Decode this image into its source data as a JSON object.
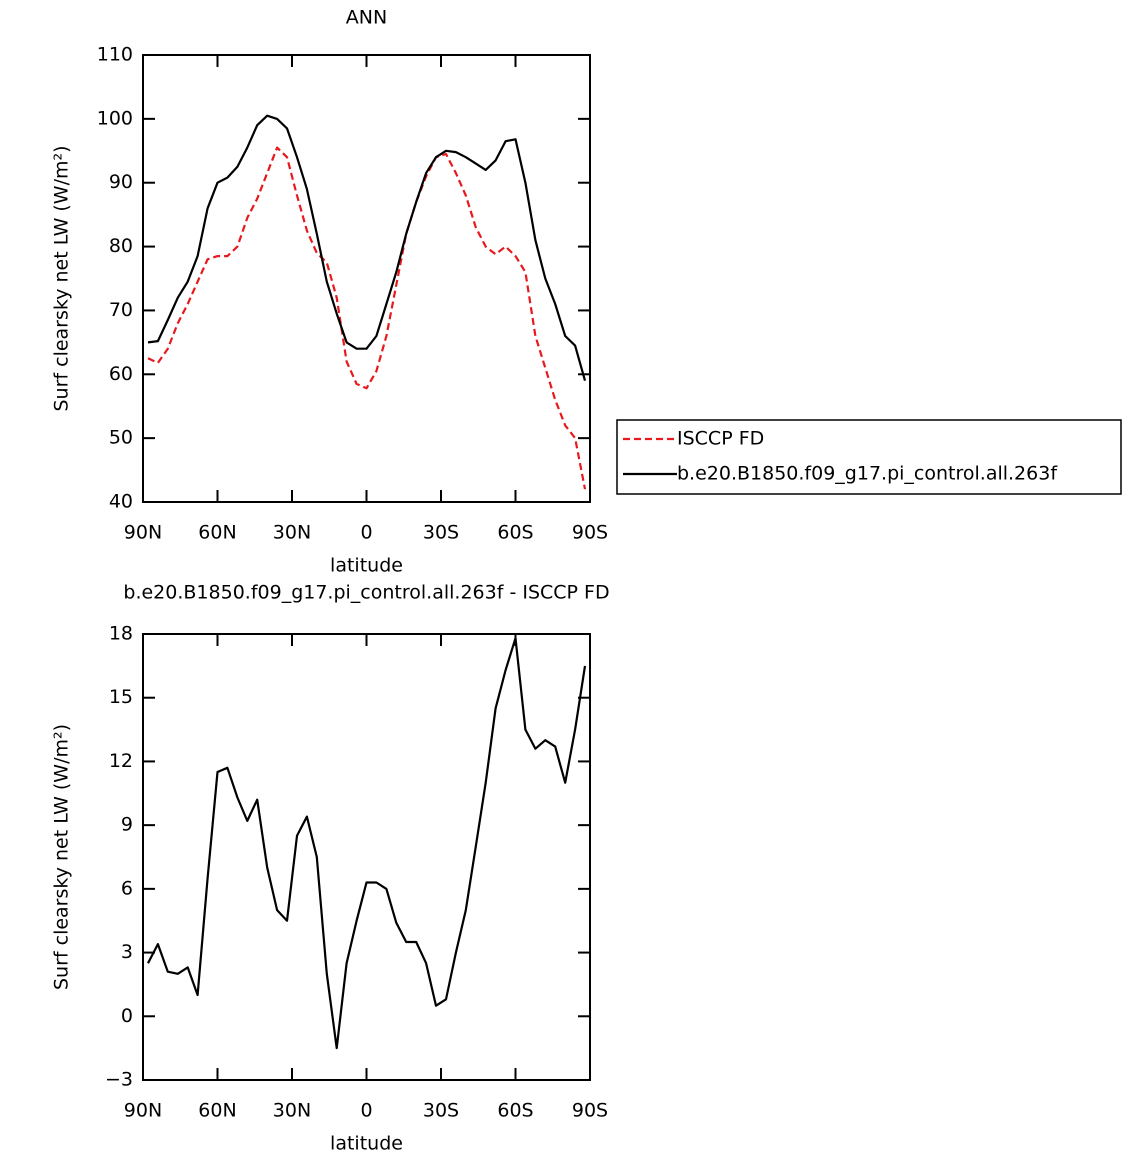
{
  "chart_data": [
    {
      "type": "line",
      "title": "ANN",
      "xlabel": "latitude",
      "ylabel": "Surf clearsky net LW (W/m²)",
      "x": [
        88,
        84,
        80,
        76,
        72,
        68,
        64,
        60,
        56,
        52,
        48,
        44,
        40,
        36,
        32,
        28,
        24,
        20,
        16,
        12,
        8,
        4,
        0,
        -4,
        -8,
        -12,
        -16,
        -20,
        -24,
        -28,
        -32,
        -36,
        -40,
        -44,
        -48,
        -52,
        -56,
        -60,
        -64,
        -68,
        -72,
        -76,
        -80,
        -84,
        -88
      ],
      "series": [
        {
          "name": "ISCCP FD",
          "color": "#e8191c",
          "dash": "dashed",
          "values": [
            62.5,
            61.8,
            64,
            68,
            71,
            74.5,
            78,
            78.5,
            78.5,
            80,
            84.5,
            87.5,
            91.5,
            95.5,
            94,
            88,
            82.5,
            79,
            77.5,
            72,
            62,
            58.5,
            57.8,
            60.5,
            66,
            74,
            82,
            87,
            91,
            94,
            94.5,
            91.5,
            88,
            83,
            80,
            78.8,
            80,
            78.5,
            76,
            66,
            61,
            56,
            52,
            50,
            42
          ]
        },
        {
          "name": "b.e20.B1850.f09_g17.pi_control.all.263f",
          "color": "#000000",
          "dash": "solid",
          "values": [
            65,
            65.2,
            68.5,
            72,
            74.5,
            78.5,
            86,
            90,
            90.8,
            92.5,
            95.5,
            99,
            100.5,
            100,
            98.5,
            94,
            89,
            82,
            74.5,
            69.5,
            65,
            64,
            64,
            66,
            71,
            76,
            82,
            87,
            91.5,
            94,
            95,
            94.8,
            94,
            93,
            92,
            93.5,
            96.5,
            96.8,
            90,
            81,
            75,
            71,
            66,
            64.5,
            59
          ]
        }
      ],
      "xlim": [
        90,
        -90
      ],
      "xticks": [
        {
          "value": 90,
          "label": "90N"
        },
        {
          "value": 60,
          "label": "60N"
        },
        {
          "value": 30,
          "label": "30N"
        },
        0,
        {
          "value": -30,
          "label": "30S"
        },
        {
          "value": -60,
          "label": "60S"
        },
        {
          "value": -90,
          "label": "90S"
        }
      ],
      "ylim": [
        40,
        110
      ],
      "yticks": [
        40,
        50,
        60,
        70,
        80,
        90,
        100,
        110
      ],
      "legend": "right"
    },
    {
      "type": "line",
      "title": "b.e20.B1850.f09_g17.pi_control.all.263f - ISCCP FD",
      "xlabel": "latitude",
      "ylabel": "Surf clearsky net LW (W/m²)",
      "x": [
        88,
        84,
        80,
        76,
        72,
        68,
        64,
        60,
        56,
        52,
        48,
        44,
        40,
        36,
        32,
        28,
        24,
        20,
        16,
        12,
        8,
        4,
        0,
        -4,
        -8,
        -12,
        -16,
        -20,
        -24,
        -28,
        -32,
        -36,
        -40,
        -44,
        -48,
        -52,
        -56,
        -60,
        -64,
        -68,
        -72,
        -76,
        -80,
        -84,
        -88
      ],
      "series": [
        {
          "color": "#000000",
          "dash": "solid",
          "values": [
            2.5,
            3.4,
            2.1,
            2.0,
            2.3,
            1.0,
            6.5,
            11.5,
            11.7,
            10.3,
            9.2,
            10.2,
            7.0,
            5.0,
            4.5,
            8.5,
            9.4,
            7.5,
            2.0,
            -1.5,
            2.5,
            4.5,
            6.3,
            6.3,
            6.0,
            4.4,
            3.5,
            3.5,
            2.5,
            0.5,
            0.8,
            3.0,
            5.0,
            8.0,
            11.0,
            14.5,
            16.3,
            17.8,
            13.5,
            12.6,
            13.0,
            12.7,
            11.0,
            13.5,
            16.5
          ]
        }
      ],
      "xlim": [
        90,
        -90
      ],
      "xticks": [
        {
          "value": 90,
          "label": "90N"
        },
        {
          "value": 60,
          "label": "60N"
        },
        {
          "value": 30,
          "label": "30N"
        },
        0,
        {
          "value": -30,
          "label": "30S"
        },
        {
          "value": -60,
          "label": "60S"
        },
        {
          "value": -90,
          "label": "90S"
        }
      ],
      "ylim": [
        -3,
        18
      ],
      "yticks": [
        {
          "value": -3,
          "label": "−3"
        },
        0,
        3,
        6,
        9,
        12,
        15,
        18
      ]
    }
  ]
}
